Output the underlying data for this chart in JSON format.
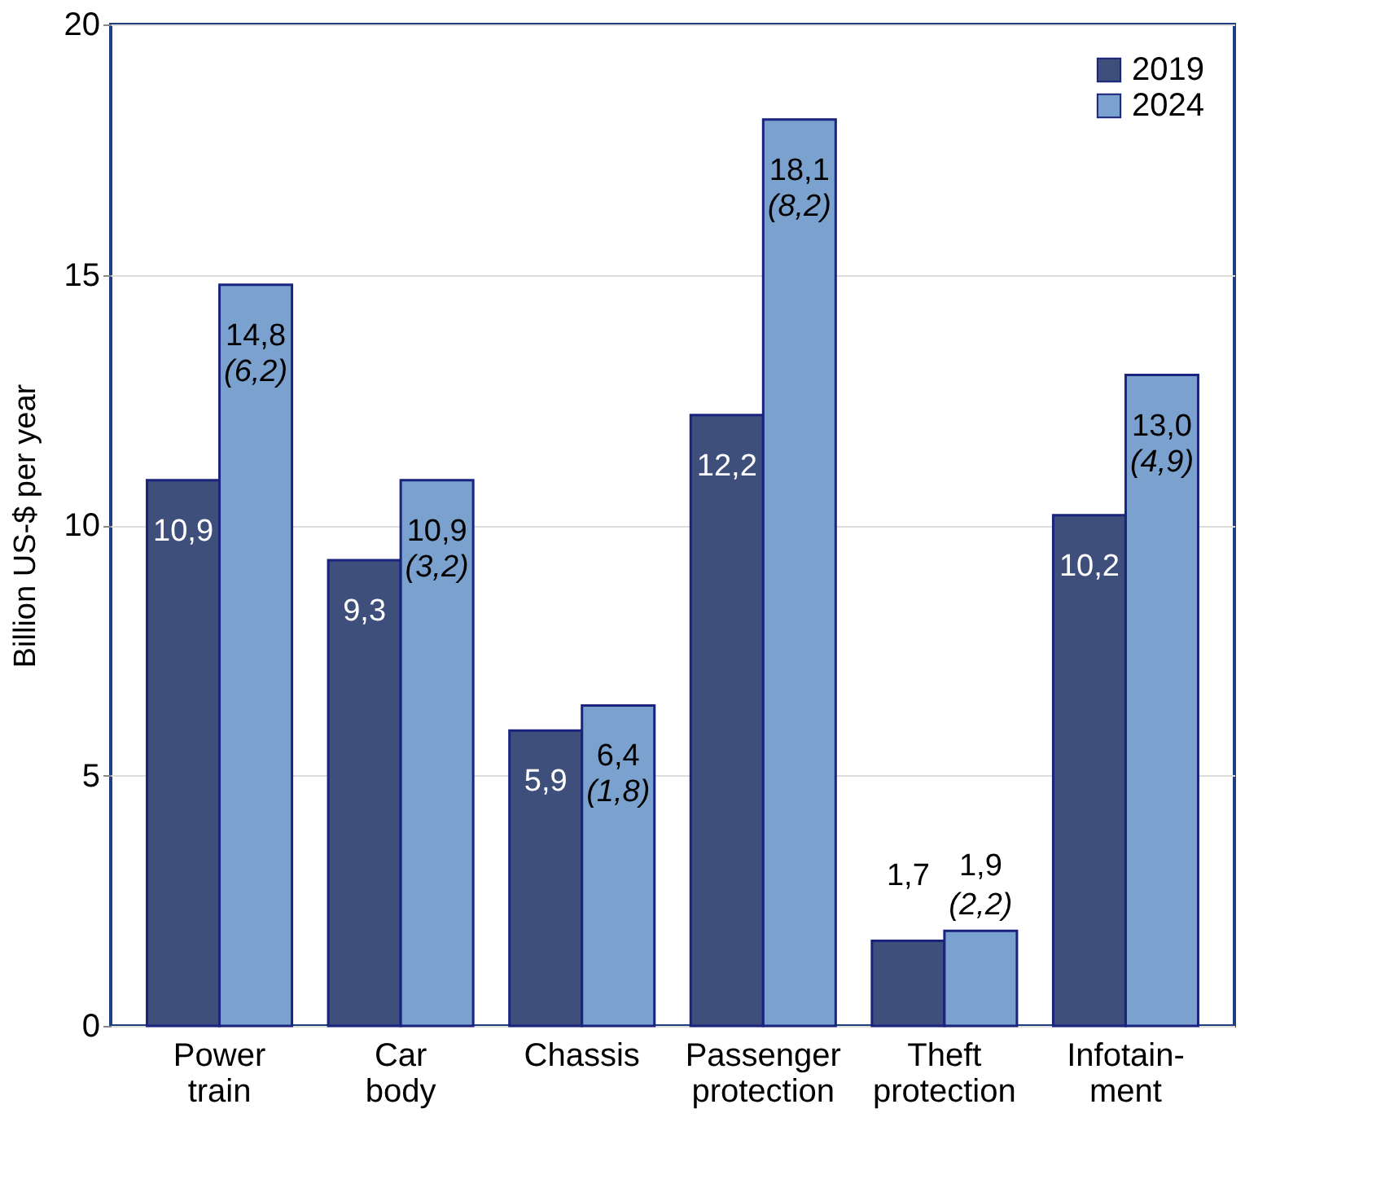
{
  "chart_data": {
    "type": "bar",
    "ylabel": "Billion US-$ per year",
    "categories": [
      "Power\ntrain",
      "Car\nbody",
      "Chassis",
      "Passenger\nprotection",
      "Theft\nprotection",
      "Infotain-\nment"
    ],
    "series": [
      {
        "name": "2019",
        "color": "#3d4f7a",
        "values": [
          10.9,
          9.3,
          5.9,
          12.2,
          1.7,
          10.2
        ],
        "value_labels": [
          "10,9",
          "9,3",
          "5,9",
          "12,2",
          "1,7",
          "10,2"
        ]
      },
      {
        "name": "2024",
        "color": "#7ba1cf",
        "values": [
          14.8,
          10.9,
          6.4,
          18.1,
          1.9,
          13.0
        ],
        "value_labels": [
          "14,8\n(6,2)",
          "10,9\n(3,2)",
          "6,4\n(1,8)",
          "18,1\n(8,2)",
          "1,9\n(2,2)",
          "13,0\n(4,9)"
        ]
      }
    ],
    "ylim": [
      0,
      20
    ],
    "yticks": [
      0,
      5,
      10,
      15,
      20
    ],
    "grid": "y",
    "legend": "top right"
  }
}
